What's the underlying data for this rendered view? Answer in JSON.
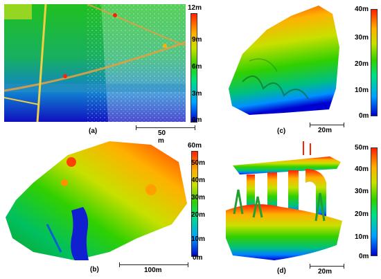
{
  "panels": [
    {
      "id": "a",
      "label": "(a)",
      "scale_bar": "50 m",
      "colorbar_ticks": [
        "12m",
        "9m",
        "6m",
        "3m",
        "0m"
      ]
    },
    {
      "id": "b",
      "label": "(b)",
      "scale_bar": "100m",
      "colorbar_ticks": [
        "60m",
        "50m",
        "40m",
        "30m",
        "20m",
        "10m",
        "0m"
      ]
    },
    {
      "id": "c",
      "label": "(c)",
      "scale_bar": "20m",
      "colorbar_ticks": [
        "40m",
        "30m",
        "20m",
        "10m",
        "0m"
      ]
    },
    {
      "id": "d",
      "label": "(d)",
      "scale_bar": "20m",
      "colorbar_ticks": [
        "50m",
        "40m",
        "30m",
        "20m",
        "10m",
        "0m"
      ]
    }
  ],
  "colors": {
    "high": "#ff2000",
    "mid_high": "#ffb000",
    "mid": "#30d000",
    "low_mid": "#00a0ff",
    "low": "#0000d0"
  }
}
